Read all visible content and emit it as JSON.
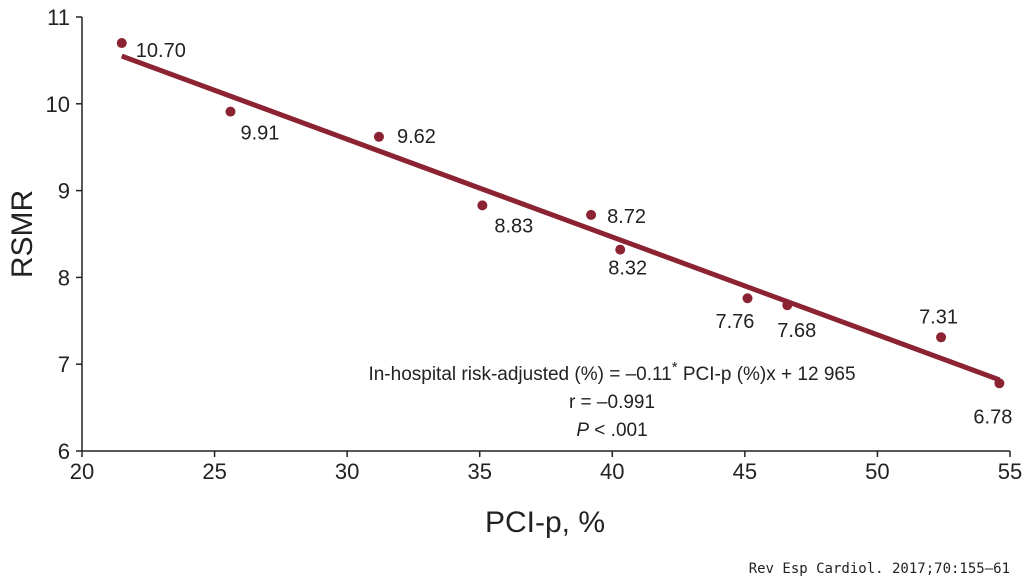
{
  "chart_data": {
    "type": "scatter",
    "title": "",
    "xlabel": "PCI-p, %",
    "ylabel": "RSMR",
    "xlim": [
      20,
      55
    ],
    "ylim": [
      6,
      11
    ],
    "x_ticks": [
      "20",
      "25",
      "30",
      "35",
      "40",
      "45",
      "50",
      "55"
    ],
    "y_ticks": [
      "6",
      "7",
      "8",
      "9",
      "10",
      "11"
    ],
    "grid": false,
    "color": "#8b2332",
    "points": [
      {
        "x": 21.5,
        "y": 10.7,
        "label": "10.70"
      },
      {
        "x": 25.6,
        "y": 9.91,
        "label": "9.91"
      },
      {
        "x": 31.2,
        "y": 9.62,
        "label": "9.62"
      },
      {
        "x": 35.1,
        "y": 8.83,
        "label": "8.83"
      },
      {
        "x": 39.2,
        "y": 8.72,
        "label": "8.72"
      },
      {
        "x": 40.3,
        "y": 8.32,
        "label": "8.32"
      },
      {
        "x": 45.1,
        "y": 7.76,
        "label": "7.76"
      },
      {
        "x": 46.6,
        "y": 7.68,
        "label": "7.68"
      },
      {
        "x": 52.4,
        "y": 7.31,
        "label": "7.31"
      },
      {
        "x": 54.6,
        "y": 6.78,
        "label": "6.78"
      }
    ],
    "trendline": {
      "x1": 21.5,
      "y1": 10.55,
      "x2": 54.6,
      "y2": 6.82
    },
    "annotation": {
      "line1_prefix": "In-hospital risk-adjusted (%) = –0.11",
      "line1_sup": "*",
      "line1_suffix": " PCI-p (%)x + 12 965",
      "line2": "r = –0.991",
      "line3_italic": "P",
      "line3_rest": " < .001"
    }
  },
  "source": "Rev Esp Cardiol. 2017;70:155–61"
}
